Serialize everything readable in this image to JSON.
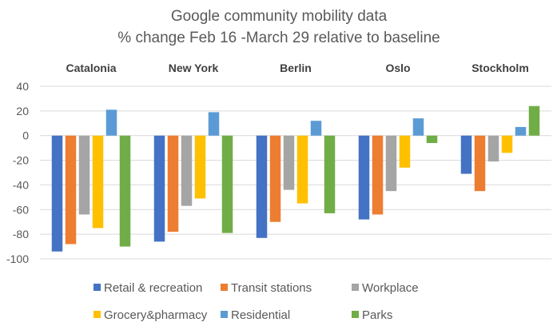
{
  "chart_data": {
    "type": "bar",
    "title": "Google community mobility data",
    "subtitle": "% change Feb 16 -March 29 relative to baseline",
    "categories": [
      "Catalonia",
      "New York",
      "Berlin",
      "Oslo",
      "Stockholm"
    ],
    "series": [
      {
        "name": "Retail & recreation",
        "color": "#4472C4",
        "values": [
          -94,
          -86,
          -83,
          -68,
          -31
        ]
      },
      {
        "name": "Transit stations",
        "color": "#ED7D31",
        "values": [
          -88,
          -78,
          -70,
          -64,
          -45
        ]
      },
      {
        "name": "Workplace",
        "color": "#A5A5A5",
        "values": [
          -64,
          -57,
          -44,
          -45,
          -21
        ]
      },
      {
        "name": "Grocery&pharmacy",
        "color": "#FFC000",
        "values": [
          -75,
          -51,
          -55,
          -26,
          -14
        ]
      },
      {
        "name": "Residential",
        "color": "#5B9BD5",
        "values": [
          21,
          19,
          12,
          14,
          7
        ]
      },
      {
        "name": "Parks",
        "color": "#70AD47",
        "values": [
          -90,
          -79,
          -63,
          -6,
          24
        ]
      }
    ],
    "ylim": [
      -100,
      40
    ],
    "yticks": [
      "40",
      "20",
      "0",
      "-20",
      "-40",
      "-60",
      "-80",
      "-100"
    ],
    "grid": true,
    "legend_position": "bottom"
  }
}
